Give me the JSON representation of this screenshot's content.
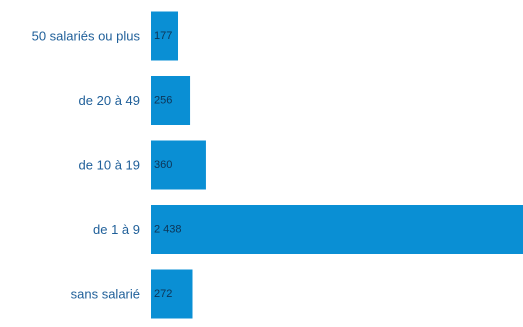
{
  "chart_data": {
    "type": "bar",
    "orientation": "horizontal",
    "categories": [
      "50 salariés ou plus",
      "de 20 à 49",
      "de 10 à 19",
      "de 1 à 9",
      "sans salarié"
    ],
    "values": [
      177,
      256,
      360,
      2438,
      272
    ],
    "value_labels": [
      "177",
      "256",
      "360",
      "2 438",
      "272"
    ],
    "title": "",
    "xlabel": "",
    "ylabel": "",
    "xlim": [
      0,
      2438
    ],
    "grid": false,
    "legend": "none"
  },
  "colors": {
    "bar": "#0a8fd4",
    "category_text": "#1f5f99",
    "value_text": "#0d3456"
  }
}
